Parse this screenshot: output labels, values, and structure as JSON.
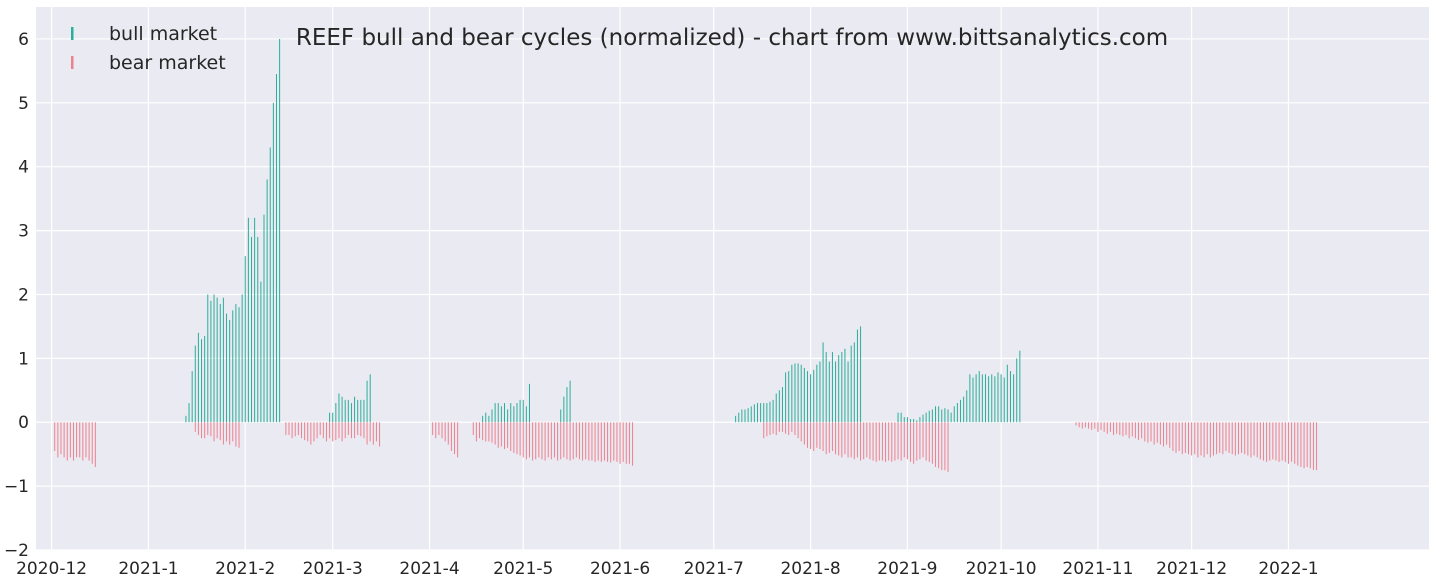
{
  "colors": {
    "background": "#EAEAF2",
    "grid": "#FFFFFF",
    "bull": "#2BAE9A",
    "bear": "#F0808E",
    "text": "#262626"
  },
  "chart_data": {
    "type": "bar",
    "title": "REEF bull and bear cycles (normalized)  - chart from www.bittsanalytics.com",
    "xlabel": "",
    "ylabel": "",
    "ylim": [
      -2,
      6.5
    ],
    "grid": true,
    "legend_position": "top-left",
    "y_ticks": [
      "−2",
      "−1",
      "0",
      "1",
      "2",
      "3",
      "4",
      "5",
      "6"
    ],
    "x_ticks": [
      "2020-12",
      "2021-1",
      "2021-2",
      "2021-3",
      "2021-4",
      "2021-5",
      "2021-6",
      "2021-7",
      "2021-8",
      "2021-9",
      "2021-10",
      "2021-11",
      "2021-12",
      "2022-1"
    ],
    "x_tick_dates": [
      "2020-12-01",
      "2021-01-01",
      "2021-02-01",
      "2021-03-01",
      "2021-04-01",
      "2021-05-01",
      "2021-06-01",
      "2021-07-01",
      "2021-08-01",
      "2021-09-01",
      "2021-10-01",
      "2021-11-01",
      "2021-12-01",
      "2022-01-01"
    ],
    "x_range": [
      "2020-11-26",
      "2022-02-15"
    ],
    "legend": [
      "bull market",
      "bear market"
    ],
    "series": [
      {
        "name": "bull market",
        "x_start": "2021-01-13",
        "values": [
          0.1,
          0.3,
          0.8,
          1.2,
          1.4,
          1.3,
          1.35,
          2.0,
          1.9,
          2.0,
          1.95,
          1.85,
          1.95,
          1.7,
          1.6,
          1.75,
          1.85,
          1.8,
          2.0,
          2.6,
          3.2,
          2.9,
          3.2,
          2.9,
          2.2,
          3.25,
          3.8,
          4.3,
          5.0,
          5.45,
          6.0,
          null,
          null,
          null,
          null,
          null,
          null,
          null,
          null,
          null,
          null,
          null,
          null,
          null,
          null,
          null,
          0.15,
          0.15,
          0.3,
          0.45,
          0.4,
          0.35,
          0.35,
          0.3,
          0.4,
          0.35,
          0.35,
          0.35,
          0.65,
          0.75,
          null,
          null,
          null,
          null,
          null,
          null,
          null,
          null,
          null,
          null,
          null,
          null,
          null,
          null,
          null,
          null,
          null,
          null,
          null,
          null,
          null,
          null,
          null,
          null,
          null,
          null,
          null,
          null,
          null,
          null,
          null,
          null,
          null,
          null,
          null,
          0.1,
          0.15,
          0.1,
          0.2,
          0.3,
          0.3,
          0.25,
          0.3,
          0.2,
          0.3,
          0.25,
          0.3,
          0.35,
          0.35,
          0.25,
          0.6,
          null,
          null,
          null,
          null,
          null,
          null,
          null,
          null,
          null,
          0.2,
          0.4,
          0.55,
          0.65,
          null,
          null,
          null,
          null,
          null,
          null,
          null,
          null,
          null,
          null,
          null,
          null,
          null,
          null,
          null,
          null,
          null,
          null,
          null,
          null,
          null,
          null,
          null,
          null,
          null,
          null,
          null,
          null,
          null,
          null,
          null,
          null,
          null,
          null,
          null,
          null,
          null,
          null,
          null,
          null,
          null,
          null,
          null,
          null,
          null,
          null,
          null,
          null,
          null,
          null,
          null,
          null,
          0.1,
          0.15,
          0.2,
          0.2,
          0.22,
          0.25,
          0.28,
          0.3,
          0.3,
          0.3,
          0.3,
          0.32,
          0.35,
          0.45,
          0.5,
          0.55,
          0.78,
          0.8,
          0.9,
          0.92,
          0.92,
          0.9,
          0.85,
          0.8,
          0.75,
          0.82,
          0.9,
          0.95,
          1.25,
          1.1,
          0.95,
          1.1,
          0.95,
          1.05,
          1.1,
          1.15,
          0.95,
          1.2,
          1.25,
          1.45,
          1.5,
          null,
          null,
          null,
          null,
          null,
          null,
          null,
          null,
          null,
          null,
          null,
          0.15,
          0.15,
          0.08,
          0.08,
          0.05,
          0.05,
          0.03,
          0.08,
          0.12,
          0.15,
          0.18,
          0.2,
          0.25,
          0.25,
          0.2,
          0.22,
          0.2,
          0.15,
          0.25,
          0.3,
          0.35,
          0.4,
          0.5,
          0.75,
          0.7,
          0.75,
          0.8,
          0.75,
          0.75,
          0.72,
          0.75,
          0.72,
          0.78,
          0.75,
          0.7,
          0.9,
          0.8,
          0.75,
          1.0,
          1.12
        ]
      },
      {
        "name": "bear market",
        "x_start": "2020-12-02",
        "values": [
          -0.45,
          -0.55,
          -0.5,
          -0.55,
          -0.6,
          -0.55,
          -0.6,
          -0.55,
          -0.55,
          -0.6,
          -0.55,
          -0.6,
          -0.65,
          -0.7,
          null,
          null,
          null,
          null,
          null,
          null,
          null,
          null,
          null,
          null,
          null,
          null,
          null,
          null,
          null,
          null,
          null,
          null,
          null,
          null,
          null,
          null,
          null,
          null,
          null,
          null,
          null,
          null,
          null,
          null,
          null,
          -0.15,
          -0.2,
          -0.25,
          -0.25,
          -0.2,
          -0.22,
          -0.3,
          -0.25,
          -0.28,
          -0.35,
          -0.3,
          -0.35,
          -0.3,
          -0.38,
          -0.4,
          null,
          null,
          null,
          null,
          null,
          null,
          null,
          null,
          null,
          null,
          null,
          null,
          null,
          null,
          -0.2,
          -0.2,
          -0.25,
          -0.22,
          -0.2,
          -0.25,
          -0.28,
          -0.3,
          -0.35,
          -0.3,
          -0.25,
          -0.2,
          -0.25,
          -0.3,
          -0.25,
          -0.3,
          -0.28,
          -0.25,
          -0.3,
          -0.25,
          -0.2,
          -0.25,
          -0.25,
          -0.2,
          -0.22,
          -0.25,
          -0.35,
          -0.3,
          -0.35,
          -0.3,
          -0.38,
          null,
          null,
          null,
          null,
          null,
          null,
          null,
          null,
          null,
          null,
          null,
          null,
          null,
          null,
          null,
          null,
          -0.2,
          -0.25,
          -0.2,
          -0.25,
          -0.3,
          -0.35,
          -0.45,
          -0.5,
          -0.55,
          null,
          null,
          null,
          null,
          -0.2,
          -0.3,
          -0.25,
          -0.28,
          -0.3,
          -0.3,
          -0.32,
          -0.35,
          -0.4,
          -0.38,
          -0.42,
          -0.4,
          -0.45,
          -0.48,
          -0.5,
          -0.52,
          -0.55,
          -0.58,
          -0.55,
          -0.6,
          -0.58,
          -0.55,
          -0.58,
          -0.6,
          -0.55,
          -0.58,
          -0.55,
          -0.6,
          -0.58,
          -0.55,
          -0.58,
          -0.6,
          -0.58,
          -0.55,
          -0.58,
          -0.6,
          -0.58,
          -0.6,
          -0.6,
          -0.62,
          -0.6,
          -0.62,
          -0.6,
          -0.62,
          -0.63,
          -0.6,
          -0.62,
          -0.65,
          -0.62,
          -0.65,
          -0.65,
          -0.68,
          null,
          null,
          null,
          null,
          null,
          null,
          null,
          null,
          null,
          null,
          null,
          null,
          null,
          null,
          null,
          null,
          null,
          null,
          null,
          null,
          null,
          null,
          null,
          null,
          null,
          null,
          null,
          null,
          null,
          null,
          null,
          null,
          null,
          null,
          null,
          null,
          null,
          null,
          null,
          null,
          null,
          -0.25,
          -0.22,
          -0.2,
          -0.18,
          -0.2,
          -0.15,
          -0.15,
          -0.18,
          -0.2,
          -0.15,
          -0.2,
          -0.25,
          -0.3,
          -0.35,
          -0.4,
          -0.42,
          -0.45,
          -0.4,
          -0.42,
          -0.45,
          -0.5,
          -0.48,
          -0.45,
          -0.5,
          -0.52,
          -0.55,
          -0.5,
          -0.55,
          -0.55,
          -0.58,
          -0.55,
          -0.6,
          -0.58,
          -0.55,
          -0.58,
          -0.6,
          -0.62,
          -0.6,
          -0.6,
          -0.62,
          -0.6,
          -0.62,
          -0.6,
          -0.58,
          -0.6,
          -0.55,
          -0.58,
          -0.62,
          -0.65,
          -0.6,
          -0.58,
          -0.55,
          -0.6,
          -0.62,
          -0.65,
          -0.7,
          -0.72,
          -0.75,
          -0.75,
          -0.78,
          null,
          null,
          null,
          null,
          null,
          null,
          null,
          null,
          null,
          null,
          null,
          null,
          null,
          null,
          null,
          null,
          null,
          null,
          null,
          null,
          null,
          null,
          null,
          null,
          null,
          null,
          null,
          null,
          null,
          null,
          null,
          null,
          null,
          null,
          null,
          null,
          null,
          null,
          null,
          null,
          -0.05,
          -0.08,
          -0.1,
          -0.08,
          -0.1,
          -0.12,
          -0.1,
          -0.15,
          -0.12,
          -0.15,
          -0.18,
          -0.15,
          -0.2,
          -0.18,
          -0.2,
          -0.22,
          -0.2,
          -0.25,
          -0.22,
          -0.25,
          -0.28,
          -0.25,
          -0.3,
          -0.32,
          -0.3,
          -0.35,
          -0.32,
          -0.35,
          -0.38,
          -0.35,
          -0.4,
          -0.45,
          -0.48,
          -0.45,
          -0.5,
          -0.48,
          -0.5,
          -0.52,
          -0.5,
          -0.55,
          -0.52,
          -0.55,
          -0.5,
          -0.55,
          -0.52,
          -0.5,
          -0.48,
          -0.5,
          -0.45,
          -0.48,
          -0.5,
          -0.52,
          -0.5,
          -0.48,
          -0.5,
          -0.52,
          -0.55,
          -0.52,
          -0.55,
          -0.58,
          -0.6,
          -0.62,
          -0.6,
          -0.58,
          -0.6,
          -0.62,
          -0.6,
          -0.62,
          -0.65,
          -0.62,
          -0.65,
          -0.68,
          -0.7,
          -0.72,
          -0.7,
          -0.72,
          -0.75,
          -0.75
        ]
      }
    ]
  }
}
